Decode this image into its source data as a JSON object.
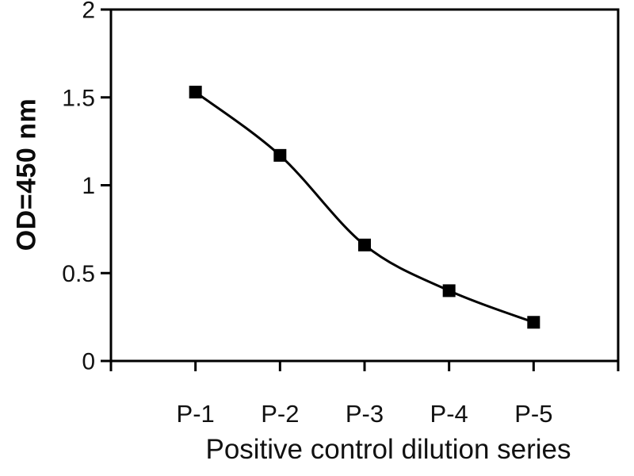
{
  "figure": {
    "background": "#ffffff",
    "ink_color": "#000000",
    "text_color": "#111111"
  },
  "chart_data": {
    "type": "line",
    "title": "",
    "categories": [
      "P-1",
      "P-2",
      "P-3",
      "P-4",
      "P-5"
    ],
    "values": [
      1.53,
      1.17,
      0.66,
      0.4,
      0.22
    ],
    "xlabel": "Positive control dilution series",
    "ylabel": "OD=450 nm",
    "ylim": [
      0,
      2
    ],
    "yticks": [
      0,
      0.5,
      1,
      1.5,
      2
    ],
    "ytick_labels": [
      "0",
      "0.5",
      "1",
      "1.5",
      "2"
    ],
    "grid": false,
    "legend": false,
    "smooth_line": true,
    "marker": "square",
    "marker_size": 16,
    "line_color": "#000000",
    "marker_color": "#000000",
    "axis_color": "#000000"
  }
}
